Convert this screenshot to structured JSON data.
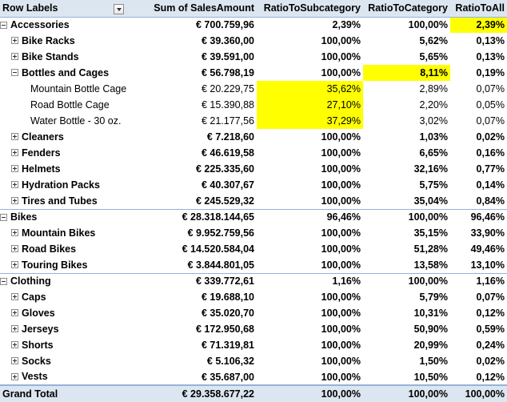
{
  "header": {
    "row_labels": "Row Labels",
    "col1": "Sum of SalesAmount",
    "col2": "RatioToSubcategory",
    "col3": "RatioToCategory",
    "col4": "RatioToAll"
  },
  "highlight_color": "#ffff00",
  "rows": [
    {
      "level": 1,
      "expanded": true,
      "label": "Accessories",
      "sales": "€ 700.759,96",
      "sub": "2,39%",
      "cat": "100,00%",
      "all": "2,39%",
      "hl": [
        false,
        false,
        true
      ]
    },
    {
      "level": 2,
      "expanded": false,
      "label": "Bike Racks",
      "sales": "€ 39.360,00",
      "sub": "100,00%",
      "cat": "5,62%",
      "all": "0,13%",
      "hl": [
        false,
        false,
        false
      ]
    },
    {
      "level": 2,
      "expanded": false,
      "label": "Bike Stands",
      "sales": "€ 39.591,00",
      "sub": "100,00%",
      "cat": "5,65%",
      "all": "0,13%",
      "hl": [
        false,
        false,
        false
      ]
    },
    {
      "level": 2,
      "expanded": true,
      "label": "Bottles and Cages",
      "sales": "€ 56.798,19",
      "sub": "100,00%",
      "cat": "8,11%",
      "all": "0,19%",
      "hl": [
        false,
        true,
        false
      ]
    },
    {
      "level": 3,
      "label": "Mountain Bottle Cage",
      "sales": "€ 20.229,75",
      "sub": "35,62%",
      "cat": "2,89%",
      "all": "0,07%",
      "hl": [
        true,
        false,
        false
      ]
    },
    {
      "level": 3,
      "label": "Road Bottle Cage",
      "sales": "€ 15.390,88",
      "sub": "27,10%",
      "cat": "2,20%",
      "all": "0,05%",
      "hl": [
        true,
        false,
        false
      ]
    },
    {
      "level": 3,
      "label": "Water Bottle - 30 oz.",
      "sales": "€ 21.177,56",
      "sub": "37,29%",
      "cat": "3,02%",
      "all": "0,07%",
      "hl": [
        true,
        false,
        false
      ]
    },
    {
      "level": 2,
      "expanded": false,
      "label": "Cleaners",
      "sales": "€ 7.218,60",
      "sub": "100,00%",
      "cat": "1,03%",
      "all": "0,02%",
      "hl": [
        false,
        false,
        false
      ]
    },
    {
      "level": 2,
      "expanded": false,
      "label": "Fenders",
      "sales": "€ 46.619,58",
      "sub": "100,00%",
      "cat": "6,65%",
      "all": "0,16%",
      "hl": [
        false,
        false,
        false
      ]
    },
    {
      "level": 2,
      "expanded": false,
      "label": "Helmets",
      "sales": "€ 225.335,60",
      "sub": "100,00%",
      "cat": "32,16%",
      "all": "0,77%",
      "hl": [
        false,
        false,
        false
      ]
    },
    {
      "level": 2,
      "expanded": false,
      "label": "Hydration Packs",
      "sales": "€ 40.307,67",
      "sub": "100,00%",
      "cat": "5,75%",
      "all": "0,14%",
      "hl": [
        false,
        false,
        false
      ]
    },
    {
      "level": 2,
      "expanded": false,
      "label": "Tires and Tubes",
      "sales": "€ 245.529,32",
      "sub": "100,00%",
      "cat": "35,04%",
      "all": "0,84%",
      "hl": [
        false,
        false,
        false
      ]
    },
    {
      "level": 1,
      "expanded": true,
      "label": "Bikes",
      "sales": "€ 28.318.144,65",
      "sub": "96,46%",
      "cat": "100,00%",
      "all": "96,46%",
      "hl": [
        false,
        false,
        false
      ]
    },
    {
      "level": 2,
      "expanded": false,
      "label": "Mountain Bikes",
      "sales": "€ 9.952.759,56",
      "sub": "100,00%",
      "cat": "35,15%",
      "all": "33,90%",
      "hl": [
        false,
        false,
        false
      ]
    },
    {
      "level": 2,
      "expanded": false,
      "label": "Road Bikes",
      "sales": "€ 14.520.584,04",
      "sub": "100,00%",
      "cat": "51,28%",
      "all": "49,46%",
      "hl": [
        false,
        false,
        false
      ]
    },
    {
      "level": 2,
      "expanded": false,
      "label": "Touring Bikes",
      "sales": "€ 3.844.801,05",
      "sub": "100,00%",
      "cat": "13,58%",
      "all": "13,10%",
      "hl": [
        false,
        false,
        false
      ]
    },
    {
      "level": 1,
      "expanded": true,
      "label": "Clothing",
      "sales": "€ 339.772,61",
      "sub": "1,16%",
      "cat": "100,00%",
      "all": "1,16%",
      "hl": [
        false,
        false,
        false
      ]
    },
    {
      "level": 2,
      "expanded": false,
      "label": "Caps",
      "sales": "€ 19.688,10",
      "sub": "100,00%",
      "cat": "5,79%",
      "all": "0,07%",
      "hl": [
        false,
        false,
        false
      ]
    },
    {
      "level": 2,
      "expanded": false,
      "label": "Gloves",
      "sales": "€ 35.020,70",
      "sub": "100,00%",
      "cat": "10,31%",
      "all": "0,12%",
      "hl": [
        false,
        false,
        false
      ]
    },
    {
      "level": 2,
      "expanded": false,
      "label": "Jerseys",
      "sales": "€ 172.950,68",
      "sub": "100,00%",
      "cat": "50,90%",
      "all": "0,59%",
      "hl": [
        false,
        false,
        false
      ]
    },
    {
      "level": 2,
      "expanded": false,
      "label": "Shorts",
      "sales": "€ 71.319,81",
      "sub": "100,00%",
      "cat": "20,99%",
      "all": "0,24%",
      "hl": [
        false,
        false,
        false
      ]
    },
    {
      "level": 2,
      "expanded": false,
      "label": "Socks",
      "sales": "€ 5.106,32",
      "sub": "100,00%",
      "cat": "1,50%",
      "all": "0,02%",
      "hl": [
        false,
        false,
        false
      ]
    },
    {
      "level": 2,
      "expanded": false,
      "label": "Vests",
      "sales": "€ 35.687,00",
      "sub": "100,00%",
      "cat": "10,50%",
      "all": "0,12%",
      "hl": [
        false,
        false,
        false
      ]
    }
  ],
  "grand_total": {
    "label": "Grand Total",
    "sales": "€ 29.358.677,22",
    "sub": "100,00%",
    "cat": "100,00%",
    "all": "100,00%"
  }
}
